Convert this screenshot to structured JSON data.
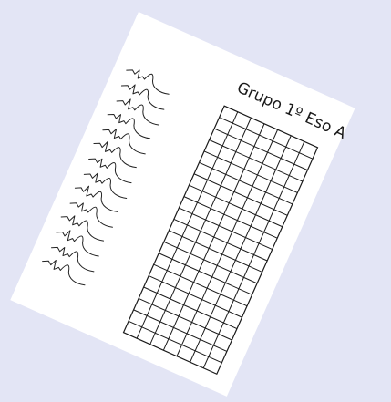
{
  "sheet": {
    "title": "Grupo 1º Eso A",
    "grid": {
      "rows": 20,
      "columns": 7
    },
    "name_entries": 14,
    "colors": {
      "background": "#e3e5f5",
      "paper": "#ffffff",
      "ink": "#1a1a1a"
    }
  }
}
